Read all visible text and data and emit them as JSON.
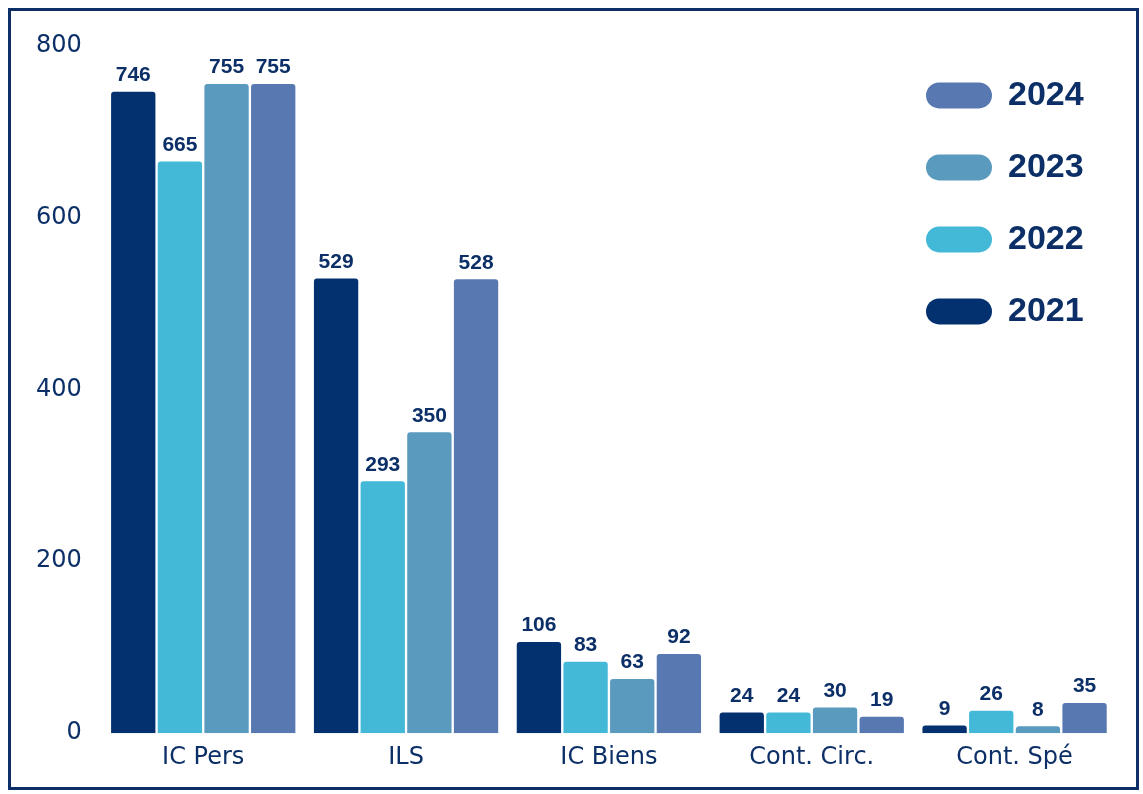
{
  "chart_data": {
    "type": "bar",
    "categories": [
      "IC Pers",
      "ILS",
      "IC Biens",
      "Cont. Circ.",
      "Cont. Spé"
    ],
    "series": [
      {
        "name": "2021",
        "color": "#03306e",
        "values": [
          746,
          529,
          106,
          24,
          9
        ]
      },
      {
        "name": "2022",
        "color": "#43b9d7",
        "values": [
          665,
          293,
          83,
          24,
          26
        ]
      },
      {
        "name": "2023",
        "color": "#5a9abe",
        "values": [
          755,
          350,
          63,
          30,
          8
        ]
      },
      {
        "name": "2024",
        "color": "#5878b1",
        "values": [
          755,
          528,
          92,
          19,
          35
        ]
      }
    ],
    "ylim": [
      0,
      800
    ],
    "yticks": [
      0,
      200,
      400,
      600,
      800
    ],
    "grid": false,
    "legend": "top right",
    "data_labels": true
  }
}
